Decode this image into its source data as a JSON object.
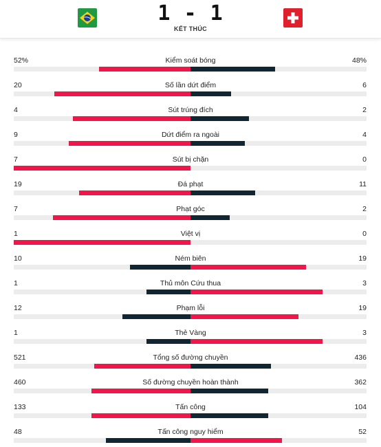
{
  "match": {
    "score": "1 - 1",
    "status": "KẾT THÚC",
    "home_flag": "brazil-flag",
    "away_flag": "switzerland-flag"
  },
  "colors": {
    "leader": "#f0164a",
    "trailer": "#112633",
    "track": "#ececec"
  },
  "stats": [
    {
      "label": "Kiểm soát bóng",
      "home": "52%",
      "away": "48%",
      "home_share": 0.52,
      "away_share": 0.48
    },
    {
      "label": "Số lần dứt điểm",
      "home": "20",
      "away": "6",
      "home_share": 0.77,
      "away_share": 0.23
    },
    {
      "label": "Sút trúng đích",
      "home": "4",
      "away": "2",
      "home_share": 0.667,
      "away_share": 0.333
    },
    {
      "label": "Dứt điểm ra ngoài",
      "home": "9",
      "away": "4",
      "home_share": 0.692,
      "away_share": 0.308
    },
    {
      "label": "Sút bị chặn",
      "home": "7",
      "away": "0",
      "home_share": 1.0,
      "away_share": 0.0
    },
    {
      "label": "Đá phạt",
      "home": "19",
      "away": "11",
      "home_share": 0.633,
      "away_share": 0.367
    },
    {
      "label": "Phạt góc",
      "home": "7",
      "away": "2",
      "home_share": 0.778,
      "away_share": 0.222
    },
    {
      "label": "Việt vị",
      "home": "1",
      "away": "0",
      "home_share": 1.0,
      "away_share": 0.0
    },
    {
      "label": "Ném biên",
      "home": "10",
      "away": "19",
      "home_share": 0.345,
      "away_share": 0.655
    },
    {
      "label": "Thủ môn Cứu thua",
      "home": "1",
      "away": "3",
      "home_share": 0.25,
      "away_share": 0.75
    },
    {
      "label": "Phạm lỗi",
      "home": "12",
      "away": "19",
      "home_share": 0.387,
      "away_share": 0.613
    },
    {
      "label": "Thẻ Vàng",
      "home": "1",
      "away": "3",
      "home_share": 0.25,
      "away_share": 0.75
    },
    {
      "label": "Tổng số đường chuyền",
      "home": "521",
      "away": "436",
      "home_share": 0.544,
      "away_share": 0.456
    },
    {
      "label": "Số đường chuyền hoàn thành",
      "home": "460",
      "away": "362",
      "home_share": 0.56,
      "away_share": 0.44
    },
    {
      "label": "Tấn công",
      "home": "133",
      "away": "104",
      "home_share": 0.561,
      "away_share": 0.439
    },
    {
      "label": "Tấn công nguy hiểm",
      "home": "48",
      "away": "52",
      "home_share": 0.48,
      "away_share": 0.52
    }
  ]
}
